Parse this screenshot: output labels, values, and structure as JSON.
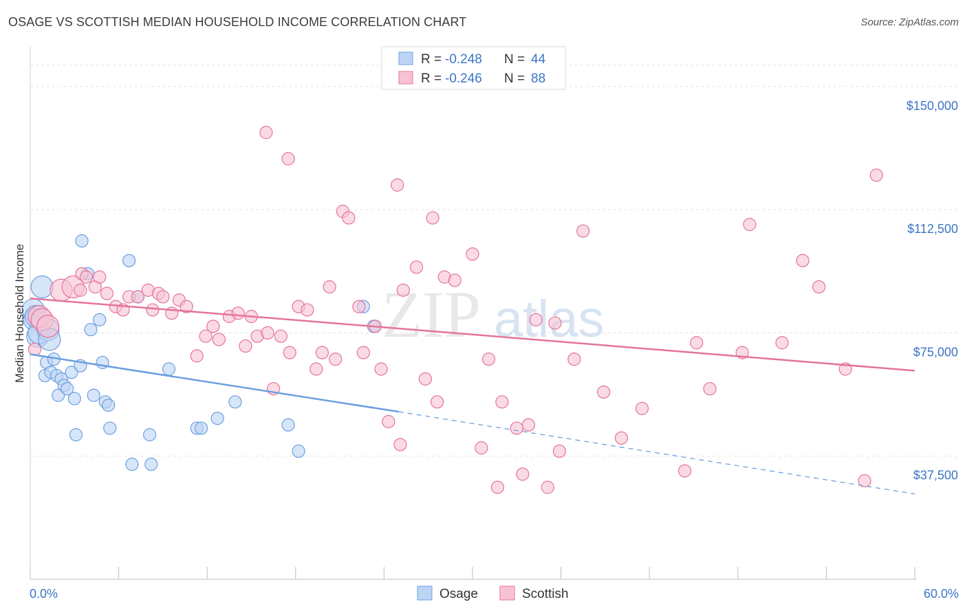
{
  "header": {
    "title": "OSAGE VS SCOTTISH MEDIAN HOUSEHOLD INCOME CORRELATION CHART",
    "source": "Source: ZipAtlas.com"
  },
  "watermark": {
    "zip": "ZIP",
    "atlas": "atlas"
  },
  "chart_data": {
    "type": "scatter",
    "ylabel": "Median Household Income",
    "xlim": [
      0,
      60
    ],
    "ylim": [
      0,
      160000
    ],
    "x_tick_labels": {
      "min": "0.0%",
      "max": "60.0%"
    },
    "y_ticks": [
      {
        "value": 37500,
        "label": "$37,500"
      },
      {
        "value": 75000,
        "label": "$75,000"
      },
      {
        "value": 112500,
        "label": "$112,500"
      },
      {
        "value": 150000,
        "label": "$150,000"
      }
    ],
    "grid": true,
    "legend_position": "top-center",
    "stats": [
      {
        "r_label": "R = ",
        "r": "-0.248",
        "n_label": "N = ",
        "n": "44"
      },
      {
        "r_label": "R = ",
        "r": "-0.246",
        "n_label": "N = ",
        "n": "88"
      }
    ],
    "series": [
      {
        "name": "Osage",
        "color": "#6b9fe0",
        "fill": "#bcd4f3",
        "trend": {
          "x0": 0,
          "y0": 68500,
          "x1": 25,
          "y1": 51000,
          "dash_to_x": 60,
          "dash_to_y": 26000
        },
        "points": [
          [
            0.2,
            82000
          ],
          [
            0.3,
            79000
          ],
          [
            0.5,
            74000
          ],
          [
            0.6,
            75000
          ],
          [
            0.8,
            89000
          ],
          [
            1.0,
            62000
          ],
          [
            1.1,
            66000
          ],
          [
            1.2,
            76000
          ],
          [
            1.3,
            73000
          ],
          [
            1.4,
            63000
          ],
          [
            1.6,
            67000
          ],
          [
            1.8,
            62000
          ],
          [
            1.9,
            56000
          ],
          [
            2.1,
            61000
          ],
          [
            2.3,
            59000
          ],
          [
            2.5,
            58000
          ],
          [
            2.8,
            63000
          ],
          [
            3.0,
            55000
          ],
          [
            3.1,
            44000
          ],
          [
            3.4,
            65000
          ],
          [
            3.5,
            103000
          ],
          [
            3.9,
            93000
          ],
          [
            4.1,
            76000
          ],
          [
            4.3,
            56000
          ],
          [
            4.7,
            79000
          ],
          [
            4.9,
            66000
          ],
          [
            5.1,
            54000
          ],
          [
            5.3,
            53000
          ],
          [
            5.4,
            46000
          ],
          [
            6.7,
            97000
          ],
          [
            6.9,
            35000
          ],
          [
            7.3,
            86000
          ],
          [
            8.1,
            44000
          ],
          [
            8.2,
            35000
          ],
          [
            9.4,
            64000
          ],
          [
            11.3,
            46000
          ],
          [
            11.6,
            46000
          ],
          [
            12.7,
            49000
          ],
          [
            13.9,
            54000
          ],
          [
            17.5,
            47000
          ],
          [
            18.2,
            39000
          ],
          [
            22.6,
            83000
          ],
          [
            23.3,
            77000
          ],
          [
            0.4,
            80000
          ]
        ]
      },
      {
        "name": "Scottish",
        "color": "#e4739a",
        "fill": "#f7c3d4",
        "trend": {
          "x0": 0,
          "y0": 85500,
          "x1": 60,
          "y1": 63500
        },
        "points": [
          [
            0.3,
            70000
          ],
          [
            0.6,
            80000
          ],
          [
            0.8,
            79000
          ],
          [
            1.2,
            77000
          ],
          [
            2.1,
            88000
          ],
          [
            2.9,
            89000
          ],
          [
            3.4,
            88000
          ],
          [
            3.5,
            93000
          ],
          [
            3.8,
            92000
          ],
          [
            4.4,
            89000
          ],
          [
            4.7,
            92000
          ],
          [
            5.2,
            87000
          ],
          [
            5.8,
            83000
          ],
          [
            6.3,
            82000
          ],
          [
            6.7,
            86000
          ],
          [
            7.3,
            86000
          ],
          [
            8.0,
            88000
          ],
          [
            8.3,
            82000
          ],
          [
            8.7,
            87000
          ],
          [
            9.0,
            86000
          ],
          [
            9.6,
            81000
          ],
          [
            10.1,
            85000
          ],
          [
            10.6,
            83000
          ],
          [
            11.3,
            68000
          ],
          [
            11.9,
            74000
          ],
          [
            12.4,
            77000
          ],
          [
            12.8,
            73000
          ],
          [
            13.5,
            80000
          ],
          [
            14.1,
            81000
          ],
          [
            14.6,
            71000
          ],
          [
            15.0,
            80000
          ],
          [
            15.4,
            74000
          ],
          [
            16.1,
            75000
          ],
          [
            16.5,
            58000
          ],
          [
            17.0,
            74000
          ],
          [
            17.6,
            69000
          ],
          [
            18.2,
            83000
          ],
          [
            18.8,
            82000
          ],
          [
            19.4,
            64000
          ],
          [
            19.8,
            69000
          ],
          [
            20.3,
            89000
          ],
          [
            20.7,
            67000
          ],
          [
            21.2,
            112000
          ],
          [
            21.6,
            110000
          ],
          [
            22.3,
            83000
          ],
          [
            22.6,
            69000
          ],
          [
            23.4,
            77000
          ],
          [
            23.8,
            64000
          ],
          [
            24.3,
            48000
          ],
          [
            24.9,
            120000
          ],
          [
            25.1,
            41000
          ],
          [
            25.3,
            88000
          ],
          [
            26.2,
            95000
          ],
          [
            26.8,
            61000
          ],
          [
            27.3,
            110000
          ],
          [
            27.6,
            54000
          ],
          [
            28.1,
            92000
          ],
          [
            28.8,
            91000
          ],
          [
            30.0,
            99000
          ],
          [
            30.6,
            40000
          ],
          [
            31.1,
            67000
          ],
          [
            31.7,
            28000
          ],
          [
            32.0,
            54000
          ],
          [
            33.0,
            46000
          ],
          [
            33.4,
            32000
          ],
          [
            33.8,
            47000
          ],
          [
            34.3,
            79000
          ],
          [
            35.1,
            28000
          ],
          [
            35.6,
            78000
          ],
          [
            35.9,
            39000
          ],
          [
            36.9,
            67000
          ],
          [
            37.5,
            106000
          ],
          [
            38.9,
            57000
          ],
          [
            40.1,
            43000
          ],
          [
            41.5,
            52000
          ],
          [
            44.4,
            33000
          ],
          [
            45.2,
            72000
          ],
          [
            46.1,
            58000
          ],
          [
            48.3,
            69000
          ],
          [
            48.8,
            108000
          ],
          [
            51.0,
            72000
          ],
          [
            52.4,
            97000
          ],
          [
            53.5,
            89000
          ],
          [
            55.3,
            64000
          ],
          [
            56.6,
            30000
          ],
          [
            57.4,
            123000
          ],
          [
            16.0,
            136000
          ],
          [
            17.5,
            128000
          ]
        ]
      }
    ]
  }
}
